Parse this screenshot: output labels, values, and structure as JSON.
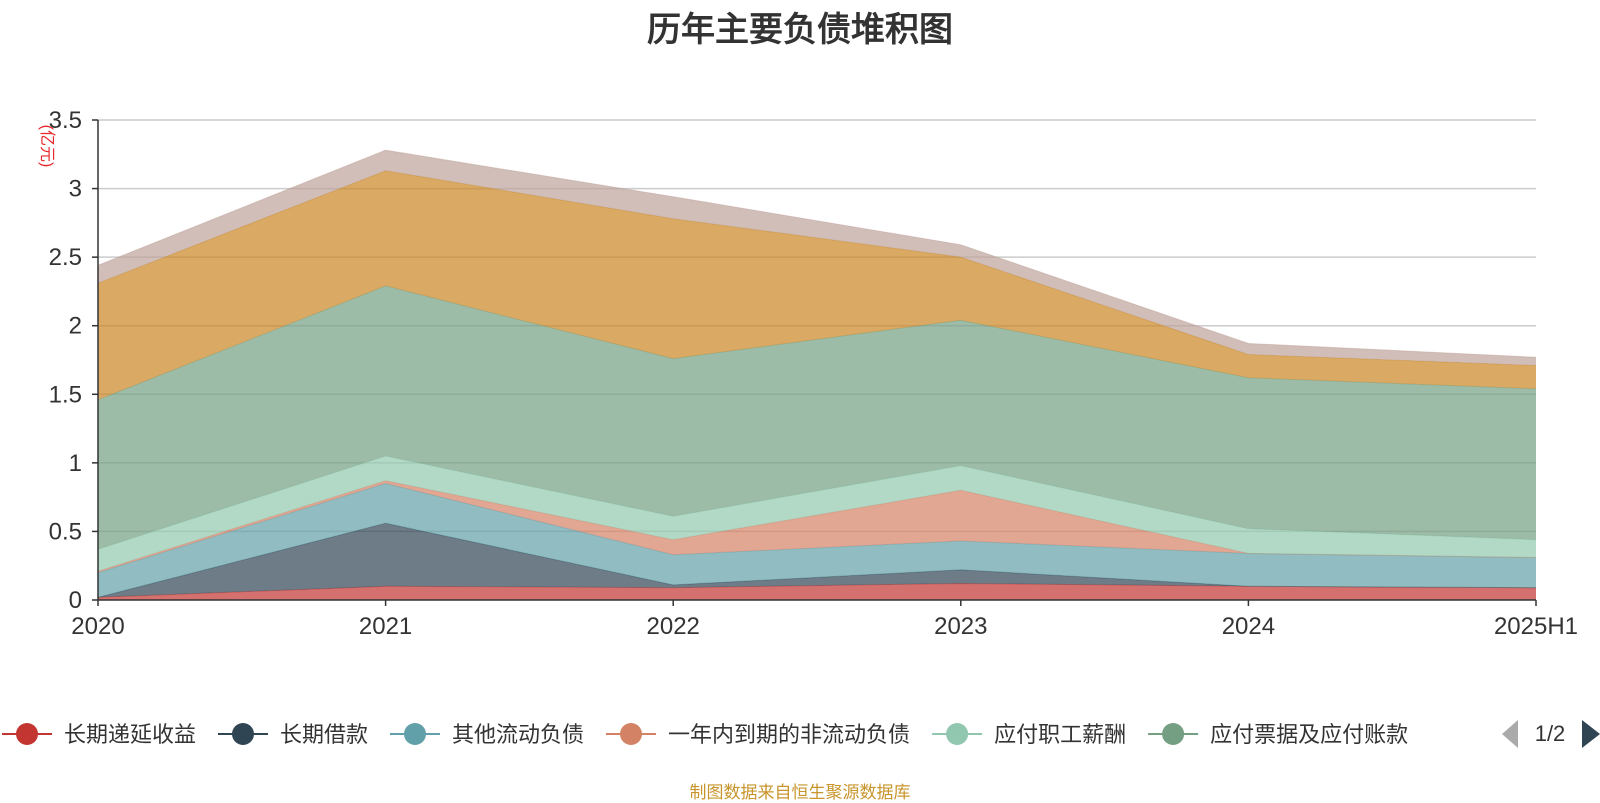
{
  "chart_data": {
    "type": "area",
    "title": "历年主要负债堆积图",
    "ylabel": "(亿元)",
    "xlabel": "",
    "categories": [
      "2020",
      "2021",
      "2022",
      "2023",
      "2024",
      "2025H1"
    ],
    "ylim": [
      0,
      3.5
    ],
    "yticks": [
      "0",
      "0.5",
      "1",
      "1.5",
      "2",
      "2.5",
      "3",
      "3.5"
    ],
    "grid": true,
    "stacked": true,
    "legend_position": "bottom",
    "legend_page": "1/2",
    "series": [
      {
        "name": "长期递延收益",
        "color": "#c23531",
        "values": [
          0.02,
          0.1,
          0.09,
          0.12,
          0.1,
          0.09
        ]
      },
      {
        "name": "长期借款",
        "color": "#2f4554",
        "values": [
          0.0,
          0.46,
          0.02,
          0.1,
          0.0,
          0.0
        ]
      },
      {
        "name": "其他流动负债",
        "color": "#61a0a8",
        "values": [
          0.18,
          0.29,
          0.22,
          0.21,
          0.24,
          0.22
        ]
      },
      {
        "name": "一年内到期的非流动负债",
        "color": "#d48265",
        "values": [
          0.01,
          0.02,
          0.11,
          0.37,
          0.0,
          0.0
        ]
      },
      {
        "name": "应付职工薪酬",
        "color": "#91c7ae",
        "values": [
          0.16,
          0.18,
          0.17,
          0.18,
          0.18,
          0.13
        ]
      },
      {
        "name": "应付票据及应付账款",
        "color": "#749f83",
        "values": [
          1.09,
          1.24,
          1.15,
          1.06,
          1.1,
          1.1
        ]
      },
      {
        "name": "",
        "color": "#ca8622",
        "values": [
          0.85,
          0.84,
          1.02,
          0.46,
          0.17,
          0.17
        ]
      },
      {
        "name": "",
        "color": "#bda29a",
        "values": [
          0.13,
          0.15,
          0.16,
          0.09,
          0.08,
          0.06
        ]
      }
    ]
  },
  "footer": {
    "source": "制图数据来自恒生聚源数据库"
  }
}
